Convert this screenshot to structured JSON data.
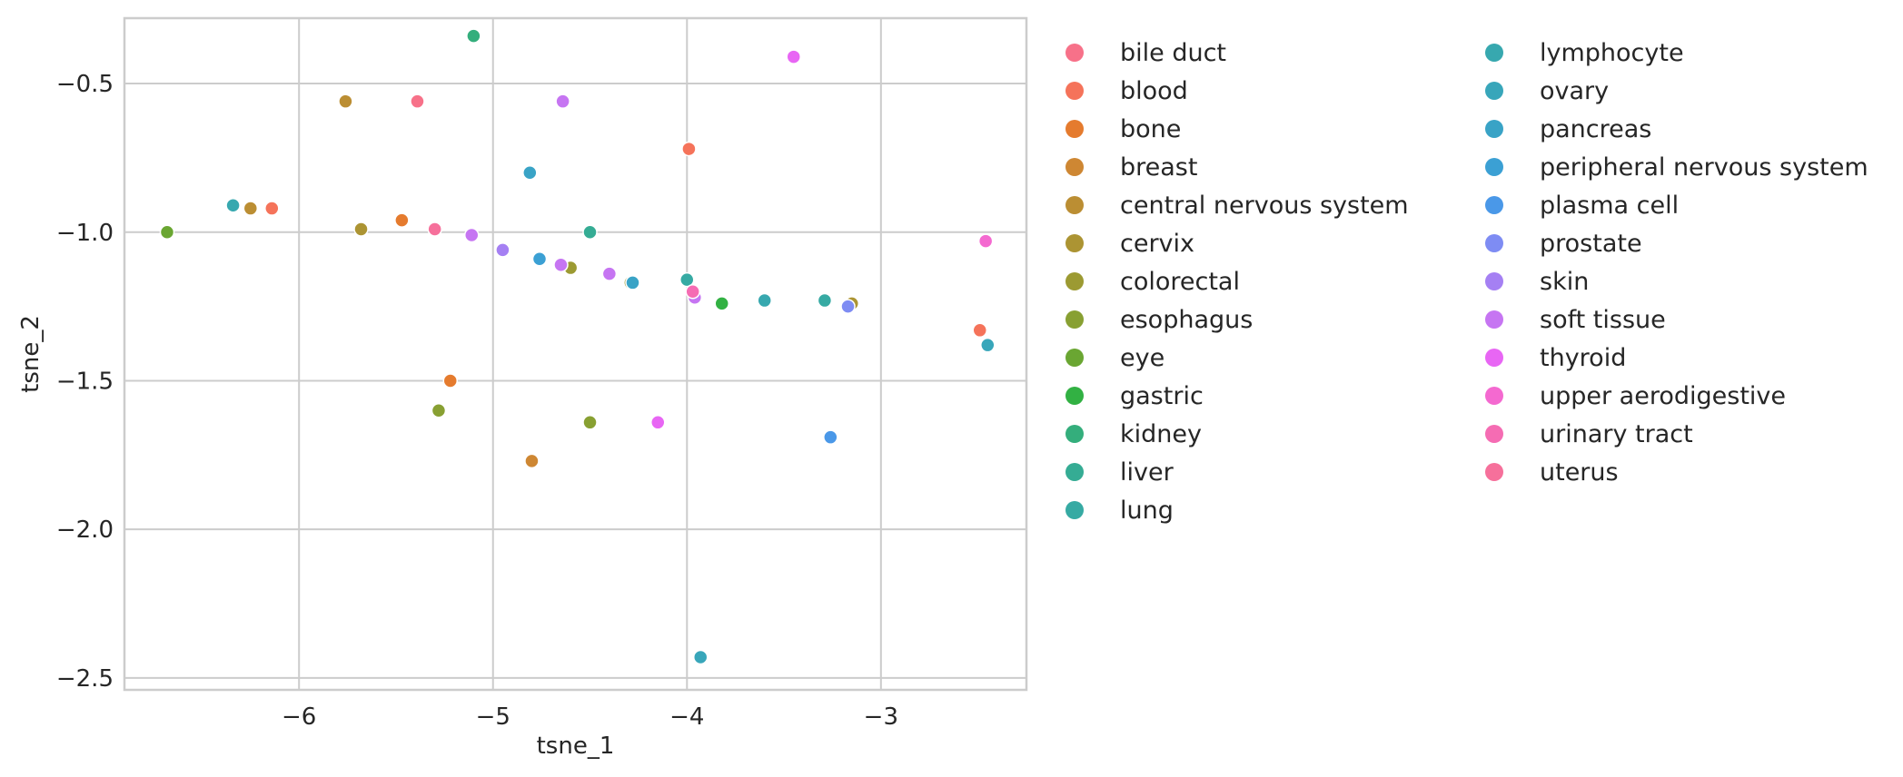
{
  "chart_data": {
    "type": "scatter",
    "title": "",
    "xlabel": "tsne_1",
    "ylabel": "tsne_2",
    "xlim": [
      -6.9,
      -2.25
    ],
    "ylim": [
      -2.54,
      -0.28
    ],
    "xticks": [
      -6,
      -5,
      -4,
      -3
    ],
    "yticks": [
      -2.5,
      -2.0,
      -1.5,
      -1.0,
      -0.5
    ],
    "grid": true,
    "legend_position": "right",
    "legend_columns": 2,
    "series": [
      {
        "name": "bile duct",
        "color": "#f77189",
        "points": [
          [
            -5.39,
            -0.56
          ]
        ]
      },
      {
        "name": "blood",
        "color": "#f5735a",
        "points": [
          [
            -6.14,
            -0.92
          ],
          [
            -3.99,
            -0.72
          ],
          [
            -2.49,
            -1.33
          ]
        ]
      },
      {
        "name": "bone",
        "color": "#e57b2e",
        "points": [
          [
            -5.47,
            -0.96
          ],
          [
            -5.22,
            -1.5
          ]
        ]
      },
      {
        "name": "breast",
        "color": "#ce8733",
        "points": [
          [
            -4.8,
            -1.77
          ]
        ]
      },
      {
        "name": "central nervous system",
        "color": "#bb8e33",
        "points": [
          [
            -5.76,
            -0.56
          ],
          [
            -6.25,
            -0.92
          ]
        ]
      },
      {
        "name": "cervix",
        "color": "#ac9433",
        "points": [
          [
            -5.68,
            -0.99
          ],
          [
            -3.15,
            -1.24
          ]
        ]
      },
      {
        "name": "colorectal",
        "color": "#9c9a32",
        "points": [
          [
            -4.6,
            -1.12
          ],
          [
            -4.29,
            -1.17
          ]
        ]
      },
      {
        "name": "esophagus",
        "color": "#88a032",
        "points": [
          [
            -5.28,
            -1.6
          ],
          [
            -4.5,
            -1.64
          ]
        ]
      },
      {
        "name": "eye",
        "color": "#6aa632",
        "points": [
          [
            -6.68,
            -1.0
          ]
        ]
      },
      {
        "name": "gastric",
        "color": "#32b143",
        "points": [
          [
            -3.82,
            -1.24
          ]
        ]
      },
      {
        "name": "kidney",
        "color": "#34ae7c",
        "points": [
          [
            -5.1,
            -0.34
          ]
        ]
      },
      {
        "name": "liver",
        "color": "#35ac94",
        "points": [
          [
            -4.5,
            -1.0
          ]
        ]
      },
      {
        "name": "lung",
        "color": "#36aaa3",
        "points": [
          [
            -4.0,
            -1.16
          ],
          [
            -3.29,
            -1.23
          ]
        ]
      },
      {
        "name": "lymphocyte",
        "color": "#37a8af",
        "points": [
          [
            -6.34,
            -0.91
          ],
          [
            -3.6,
            -1.23
          ]
        ]
      },
      {
        "name": "ovary",
        "color": "#38a6ba",
        "points": [
          [
            -2.45,
            -1.38
          ],
          [
            -3.93,
            -2.43
          ]
        ]
      },
      {
        "name": "pancreas",
        "color": "#39a3c6",
        "points": [
          [
            -4.81,
            -0.8
          ],
          [
            -4.28,
            -1.17
          ]
        ]
      },
      {
        "name": "peripheral nervous system",
        "color": "#3ba0d4",
        "points": [
          [
            -4.76,
            -1.09
          ]
        ]
      },
      {
        "name": "plasma cell",
        "color": "#4a98e8",
        "points": [
          [
            -3.26,
            -1.69
          ]
        ]
      },
      {
        "name": "prostate",
        "color": "#7e8cf3",
        "points": [
          [
            -3.17,
            -1.25
          ]
        ]
      },
      {
        "name": "skin",
        "color": "#a580f3",
        "points": [
          [
            -4.95,
            -1.06
          ]
        ]
      },
      {
        "name": "soft tissue",
        "color": "#c675f2",
        "points": [
          [
            -4.64,
            -0.56
          ],
          [
            -5.11,
            -1.01
          ],
          [
            -4.65,
            -1.11
          ],
          [
            -4.4,
            -1.14
          ],
          [
            -3.96,
            -1.22
          ]
        ]
      },
      {
        "name": "thyroid",
        "color": "#e866f4",
        "points": [
          [
            -3.45,
            -0.41
          ],
          [
            -4.15,
            -1.64
          ]
        ]
      },
      {
        "name": "upper aerodigestive",
        "color": "#f469d0",
        "points": [
          [
            -2.46,
            -1.03
          ]
        ]
      },
      {
        "name": "urinary tract",
        "color": "#f56cb3",
        "points": [
          [
            -3.97,
            -1.2
          ]
        ]
      },
      {
        "name": "uterus",
        "color": "#f6709b",
        "points": [
          [
            -5.3,
            -0.99
          ]
        ]
      }
    ]
  }
}
